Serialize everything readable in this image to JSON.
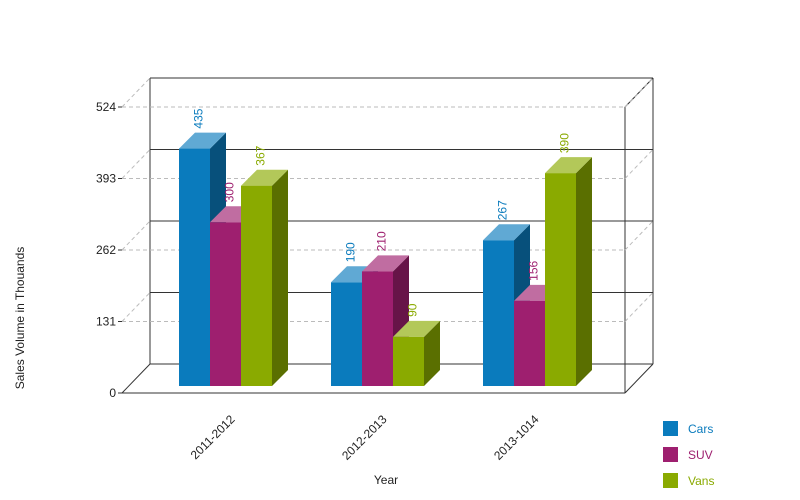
{
  "chart_data": {
    "type": "bar",
    "title": "",
    "xlabel": "Year",
    "ylabel": "Sales Volume in Thouands",
    "categories": [
      "2011-2012",
      "2012-2013",
      "2013-1014"
    ],
    "series": [
      {
        "name": "Cars",
        "values": [
          435,
          190,
          267
        ],
        "color": "#0a7bbd"
      },
      {
        "name": "SUV",
        "values": [
          300,
          210,
          156
        ],
        "color": "#9e1f6f"
      },
      {
        "name": "Vans",
        "values": [
          367,
          90,
          390
        ],
        "color": "#8aaa00"
      }
    ],
    "ylim": [
      0,
      524
    ],
    "yticks": [
      0,
      131,
      262,
      393,
      524
    ],
    "grid": true,
    "legend_position": "bottom-right",
    "style": "3d-clustered-bar"
  }
}
